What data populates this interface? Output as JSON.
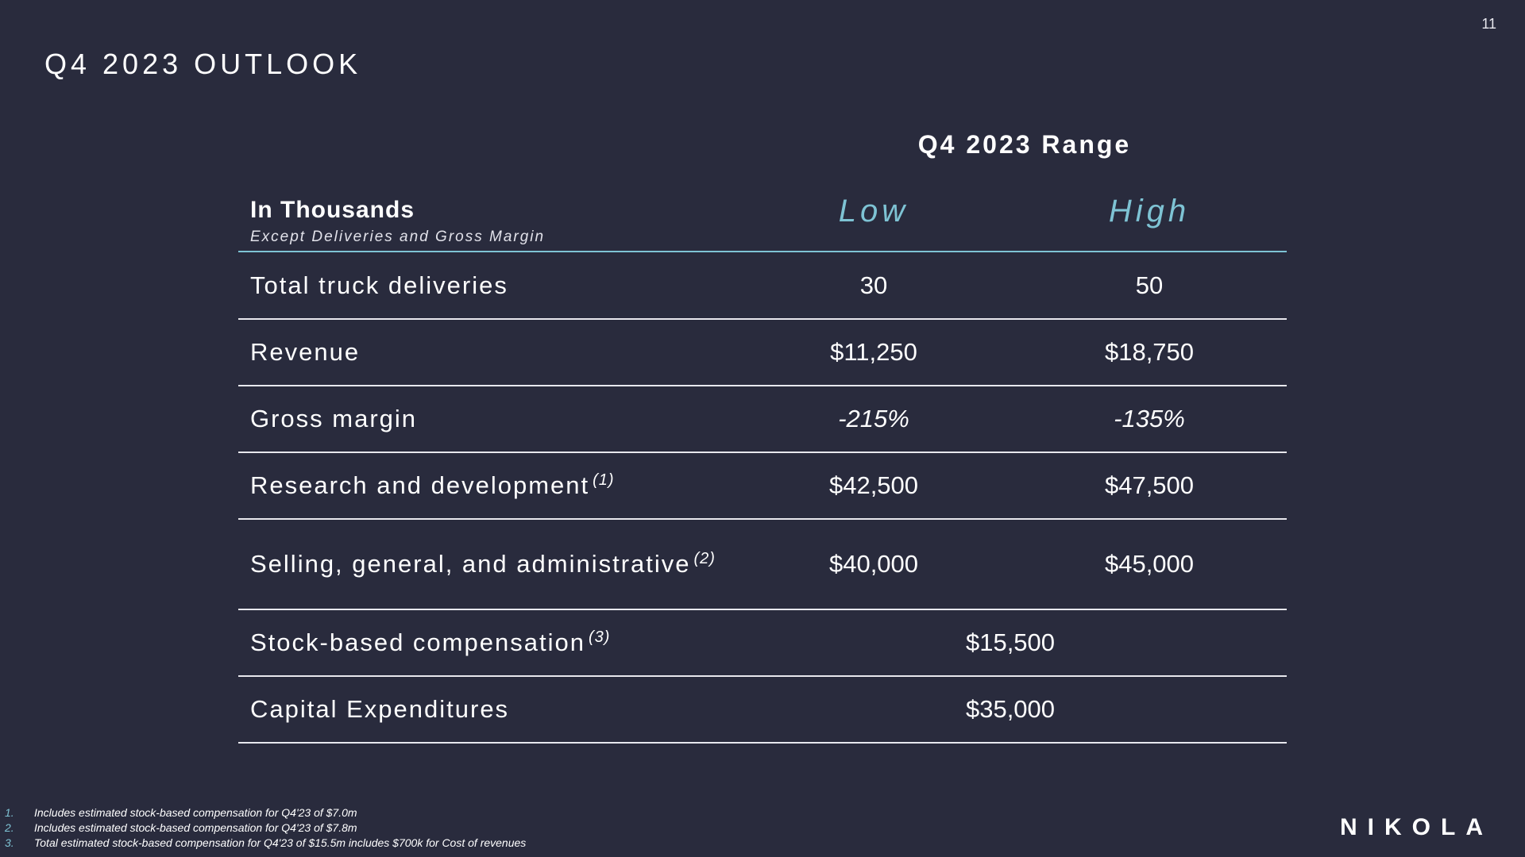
{
  "page_number": "11",
  "title": "Q4 2023 OUTLOOK",
  "range_heading": "Q4 2023 Range",
  "table": {
    "header": {
      "title": "In Thousands",
      "subtitle": "Except Deliveries and Gross Margin",
      "low_label": "Low",
      "high_label": "High"
    },
    "rows": [
      {
        "label": "Total truck deliveries",
        "sup": "",
        "low": "30",
        "high": "50"
      },
      {
        "label": "Revenue",
        "sup": "",
        "low": "$11,250",
        "high": "$18,750"
      },
      {
        "label": "Gross margin",
        "sup": "",
        "low": "-215%",
        "high": "-135%"
      },
      {
        "label": "Research and development",
        "sup": "(1)",
        "low": "$42,500",
        "high": "$47,500"
      },
      {
        "label": "Selling, general, and administrative",
        "sup": "(2)",
        "low": "$40,000",
        "high": "$45,000"
      },
      {
        "label": "Stock-based compensation",
        "sup": "(3)",
        "combined": "$15,500"
      },
      {
        "label": "Capital Expenditures",
        "sup": "",
        "combined": "$35,000"
      }
    ]
  },
  "footnotes": [
    {
      "num": "1.",
      "text": "Includes estimated stock-based compensation for Q4'23 of $7.0m"
    },
    {
      "num": "2.",
      "text": "Includes estimated stock-based compensation for Q4'23 of $7.8m"
    },
    {
      "num": "3.",
      "text": "Total estimated stock-based compensation for Q4'23 of $15.5m includes $700k for Cost of revenues"
    }
  ],
  "logo_text": "NIKOLA"
}
